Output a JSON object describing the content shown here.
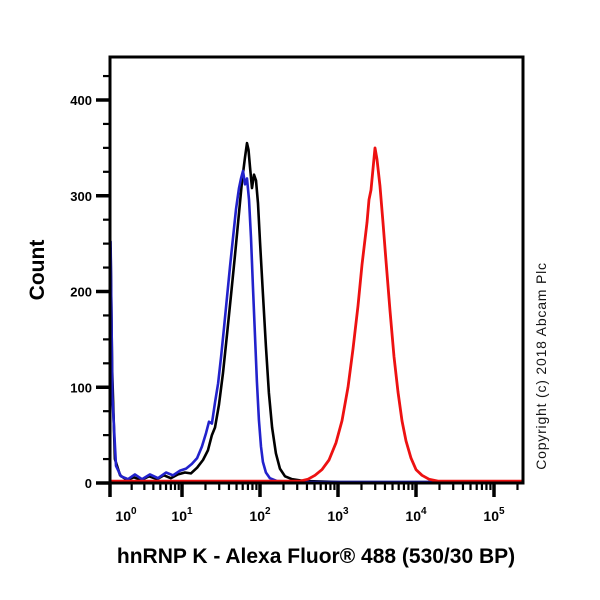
{
  "figure": {
    "title": "hnRNP K - Alexa Fluor® 488 (530/30 BP)",
    "y_axis_label": "Count",
    "copyright_notice": "Copyright (c) 2018 Abcam Plc",
    "background_color": "#ffffff"
  },
  "chart_data": {
    "type": "line",
    "subtype": "flow-cytometry-overlay-histogram",
    "title": "hnRNP K - Alexa Fluor® 488 (530/30 BP)",
    "xlabel": "hnRNP K - Alexa Fluor® 488 (530/30 BP)",
    "ylabel": "Count",
    "x_scale": "log10",
    "x_tick_exponents": [
      0,
      1,
      2,
      3,
      4,
      5
    ],
    "x_range": [
      1,
      235000
    ],
    "y_ticks": [
      0,
      100,
      200,
      300,
      400
    ],
    "y_minor_tick_step": 25,
    "ylim": [
      0,
      445
    ],
    "grid": false,
    "legend": "none",
    "frame_color": "#000000",
    "series": [
      {
        "name": "black",
        "color": "#000000",
        "stroke_width": 2.6,
        "peak": {
          "x": 68,
          "count": 355
        },
        "points": [
          [
            1.0,
            2
          ],
          [
            1.01,
            140
          ],
          [
            1.02,
            245
          ],
          [
            1.07,
            120
          ],
          [
            1.17,
            25
          ],
          [
            1.38,
            8
          ],
          [
            1.72,
            3
          ],
          [
            2.15,
            6
          ],
          [
            2.7,
            3
          ],
          [
            3.48,
            7
          ],
          [
            4.5,
            4
          ],
          [
            5.6,
            8
          ],
          [
            7.0,
            5
          ],
          [
            8.8,
            9
          ],
          [
            10.9,
            11
          ],
          [
            13.0,
            10
          ],
          [
            15.6,
            16
          ],
          [
            18.6,
            24
          ],
          [
            21.5,
            34
          ],
          [
            24.2,
            50
          ],
          [
            26.5,
            58
          ],
          [
            29.8,
            82
          ],
          [
            33.5,
            115
          ],
          [
            37.7,
            155
          ],
          [
            42.5,
            196
          ],
          [
            47.8,
            238
          ],
          [
            53.8,
            282
          ],
          [
            58.8,
            315
          ],
          [
            64.2,
            340
          ],
          [
            68.1,
            355
          ],
          [
            71.2,
            348
          ],
          [
            74.4,
            330
          ],
          [
            78.9,
            308
          ],
          [
            83.7,
            322
          ],
          [
            88.9,
            316
          ],
          [
            94.2,
            292
          ],
          [
            100,
            252
          ],
          [
            109,
            198
          ],
          [
            119,
            143
          ],
          [
            130,
            94
          ],
          [
            143,
            58
          ],
          [
            160,
            31
          ],
          [
            180,
            15
          ],
          [
            209,
            7
          ],
          [
            257,
            4
          ],
          [
            378,
            2
          ],
          [
            1060,
            1
          ],
          [
            11250,
            1
          ],
          [
            235000,
            1
          ]
        ]
      },
      {
        "name": "blue",
        "color": "#2222cc",
        "stroke_width": 2.6,
        "peak": {
          "x": 60,
          "count": 326
        },
        "points": [
          [
            1.0,
            2
          ],
          [
            1.01,
            150
          ],
          [
            1.02,
            252
          ],
          [
            1.08,
            90
          ],
          [
            1.21,
            18
          ],
          [
            1.42,
            7
          ],
          [
            1.78,
            4
          ],
          [
            2.22,
            9
          ],
          [
            2.78,
            4
          ],
          [
            3.59,
            9
          ],
          [
            4.64,
            5
          ],
          [
            6.0,
            11
          ],
          [
            7.5,
            8
          ],
          [
            9.4,
            13
          ],
          [
            11.3,
            15
          ],
          [
            13.4,
            20
          ],
          [
            15.6,
            26
          ],
          [
            18.0,
            38
          ],
          [
            20.3,
            52
          ],
          [
            22.2,
            64
          ],
          [
            24.2,
            62
          ],
          [
            26.5,
            84
          ],
          [
            29.0,
            104
          ],
          [
            31.7,
            132
          ],
          [
            34.6,
            162
          ],
          [
            37.7,
            194
          ],
          [
            41.2,
            226
          ],
          [
            45.0,
            256
          ],
          [
            49.2,
            286
          ],
          [
            53.8,
            308
          ],
          [
            57.1,
            318
          ],
          [
            60.5,
            326
          ],
          [
            64.2,
            312
          ],
          [
            68.1,
            318
          ],
          [
            72.2,
            296
          ],
          [
            76.6,
            256
          ],
          [
            81.2,
            206
          ],
          [
            86.1,
            156
          ],
          [
            91.3,
            106
          ],
          [
            96.9,
            66
          ],
          [
            103,
            38
          ],
          [
            109,
            22
          ],
          [
            119,
            11
          ],
          [
            134,
            5
          ],
          [
            165,
            2
          ],
          [
            325,
            1
          ],
          [
            6220,
            1
          ],
          [
            235000,
            1
          ]
        ]
      },
      {
        "name": "red",
        "color": "#ed1111",
        "stroke_width": 2.8,
        "peak": {
          "x": 2980,
          "count": 350
        },
        "points": [
          [
            1.0,
            2
          ],
          [
            3.6,
            2
          ],
          [
            74,
            2
          ],
          [
            326,
            2
          ],
          [
            412,
            4
          ],
          [
            507,
            8
          ],
          [
            624,
            14
          ],
          [
            767,
            24
          ],
          [
            942,
            42
          ],
          [
            1125,
            65
          ],
          [
            1343,
            100
          ],
          [
            1557,
            140
          ],
          [
            1804,
            185
          ],
          [
            2032,
            228
          ],
          [
            2355,
            272
          ],
          [
            2497,
            296
          ],
          [
            2648,
            306
          ],
          [
            2809,
            328
          ],
          [
            2979,
            350
          ],
          [
            3160,
            338
          ],
          [
            3452,
            310
          ],
          [
            3772,
            272
          ],
          [
            4121,
            232
          ],
          [
            4641,
            180
          ],
          [
            5227,
            132
          ],
          [
            5886,
            95
          ],
          [
            6623,
            65
          ],
          [
            7450,
            44
          ],
          [
            8634,
            26
          ],
          [
            10000,
            14
          ],
          [
            11940,
            8
          ],
          [
            14680,
            4
          ],
          [
            19150,
            2
          ],
          [
            49250,
            2
          ],
          [
            235000,
            2
          ]
        ]
      }
    ]
  }
}
